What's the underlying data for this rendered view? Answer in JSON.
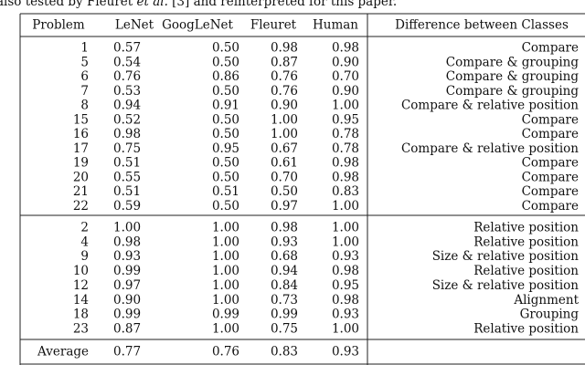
{
  "caption": [
    "also tested by Fleuret ",
    "et al.",
    " [3] and reinterpreted for this paper."
  ],
  "table": {
    "header": [
      "Problem",
      "LeNet",
      "GoogLeNet",
      "Fleuret",
      "Human",
      "Difference between Classes"
    ],
    "groups": [
      [
        [
          "1",
          "0.57",
          "0.50",
          "0.98",
          "0.98",
          "Compare"
        ],
        [
          "5",
          "0.54",
          "0.50",
          "0.87",
          "0.90",
          "Compare & grouping"
        ],
        [
          "6",
          "0.76",
          "0.86",
          "0.76",
          "0.70",
          "Compare & grouping"
        ],
        [
          "7",
          "0.53",
          "0.50",
          "0.76",
          "0.90",
          "Compare & grouping"
        ],
        [
          "8",
          "0.94",
          "0.91",
          "0.90",
          "1.00",
          "Compare & relative position"
        ],
        [
          "15",
          "0.52",
          "0.50",
          "1.00",
          "0.95",
          "Compare"
        ],
        [
          "16",
          "0.98",
          "0.50",
          "1.00",
          "0.78",
          "Compare"
        ],
        [
          "17",
          "0.75",
          "0.95",
          "0.67",
          "0.78",
          "Compare & relative position"
        ],
        [
          "19",
          "0.51",
          "0.50",
          "0.61",
          "0.98",
          "Compare"
        ],
        [
          "20",
          "0.55",
          "0.50",
          "0.70",
          "0.98",
          "Compare"
        ],
        [
          "21",
          "0.51",
          "0.51",
          "0.50",
          "0.83",
          "Compare"
        ],
        [
          "22",
          "0.59",
          "0.50",
          "0.97",
          "1.00",
          "Compare"
        ]
      ],
      [
        [
          "2",
          "1.00",
          "1.00",
          "0.98",
          "1.00",
          "Relative position"
        ],
        [
          "4",
          "0.98",
          "1.00",
          "0.93",
          "1.00",
          "Relative position"
        ],
        [
          "9",
          "0.93",
          "1.00",
          "0.68",
          "0.93",
          "Size & relative position"
        ],
        [
          "10",
          "0.99",
          "1.00",
          "0.94",
          "0.98",
          "Relative position"
        ],
        [
          "12",
          "0.97",
          "1.00",
          "0.84",
          "0.95",
          "Size & relative position"
        ],
        [
          "14",
          "0.90",
          "1.00",
          "0.73",
          "0.98",
          "Alignment"
        ],
        [
          "18",
          "0.99",
          "0.99",
          "0.99",
          "0.93",
          "Grouping"
        ],
        [
          "23",
          "0.87",
          "1.00",
          "0.75",
          "1.00",
          "Relative position"
        ]
      ]
    ],
    "footer": [
      "Average",
      "0.77",
      "0.76",
      "0.83",
      "0.93"
    ]
  }
}
